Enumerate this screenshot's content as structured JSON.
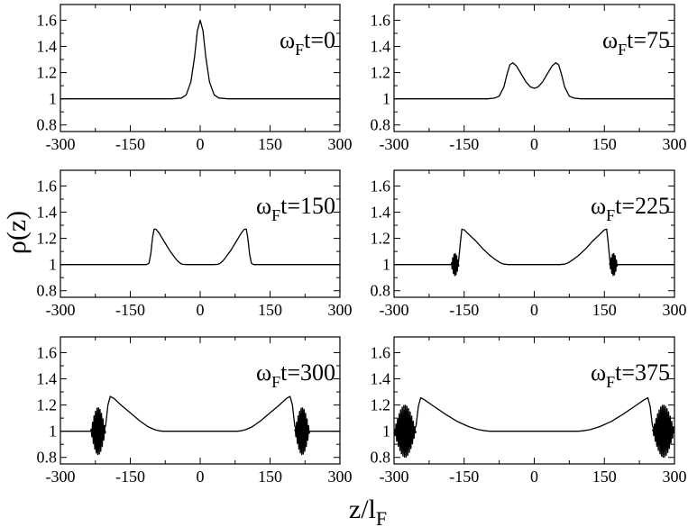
{
  "chart_data": {
    "type": "line",
    "ylabel": "ρ(z)",
    "xlabel_main": "z/l",
    "xlabel_sub": "F",
    "xlim": [
      -300,
      300
    ],
    "ylim": [
      0.75,
      1.72
    ],
    "xticks": [
      -300,
      -150,
      0,
      150,
      300
    ],
    "xtick_labels": [
      "-300",
      "-150",
      "0",
      "150",
      "300"
    ],
    "yticks": [
      0.8,
      1.0,
      1.2,
      1.4,
      1.6
    ],
    "ytick_labels": [
      "0.8",
      "1",
      "1.2",
      "1.4",
      "1.6"
    ],
    "panels": [
      {
        "label": {
          "omega": "ω",
          "sub": "F",
          "rest": "t=0"
        },
        "x": [
          -300,
          -60,
          -40,
          -30,
          -20,
          -12,
          -6,
          0,
          6,
          12,
          20,
          30,
          40,
          60,
          300
        ],
        "y": [
          1.0,
          1.0,
          1.006,
          1.03,
          1.13,
          1.32,
          1.52,
          1.6,
          1.52,
          1.32,
          1.13,
          1.03,
          1.006,
          1.0,
          1.0
        ],
        "oscillations": []
      },
      {
        "label": {
          "omega": "ω",
          "sub": "F",
          "rest": "t=75"
        },
        "x": [
          -300,
          -100,
          -85,
          -75,
          -65,
          -58,
          -52,
          -46,
          -38,
          -28,
          -18,
          -8,
          0,
          8,
          18,
          28,
          38,
          46,
          52,
          58,
          65,
          75,
          85,
          100,
          300
        ],
        "y": [
          1.0,
          1.0,
          1.005,
          1.02,
          1.09,
          1.19,
          1.26,
          1.275,
          1.25,
          1.19,
          1.13,
          1.09,
          1.08,
          1.09,
          1.13,
          1.19,
          1.25,
          1.275,
          1.26,
          1.19,
          1.09,
          1.02,
          1.005,
          1.0,
          1.0
        ],
        "oscillations": []
      },
      {
        "label": {
          "omega": "ω",
          "sub": "F",
          "rest": "t=150"
        },
        "x": [
          -300,
          -115,
          -110,
          -106,
          -102,
          -99,
          -95,
          -88,
          -78,
          -66,
          -56,
          -48,
          -42,
          -38,
          -30,
          30,
          38,
          42,
          48,
          56,
          66,
          78,
          88,
          95,
          99,
          102,
          106,
          110,
          115,
          300
        ],
        "y": [
          1.0,
          1.0,
          1.01,
          1.08,
          1.21,
          1.27,
          1.27,
          1.24,
          1.18,
          1.11,
          1.06,
          1.025,
          1.008,
          1.002,
          1.0,
          1.0,
          1.002,
          1.008,
          1.025,
          1.06,
          1.11,
          1.18,
          1.24,
          1.27,
          1.27,
          1.21,
          1.08,
          1.01,
          1.0,
          1.0
        ],
        "oscillations": []
      },
      {
        "label": {
          "omega": "ω",
          "sub": "F",
          "rest": "t=225"
        },
        "x": [
          -300,
          -170,
          -162,
          -158,
          -155,
          -150,
          -140,
          -125,
          -110,
          -95,
          -82,
          -72,
          -65,
          -55,
          55,
          65,
          72,
          82,
          95,
          110,
          125,
          140,
          150,
          155,
          158,
          162,
          170,
          300
        ],
        "y": [
          1.0,
          1.0,
          1.02,
          1.17,
          1.27,
          1.265,
          1.23,
          1.18,
          1.12,
          1.07,
          1.035,
          1.012,
          1.003,
          1.0,
          1.0,
          1.003,
          1.012,
          1.035,
          1.07,
          1.12,
          1.18,
          1.23,
          1.265,
          1.27,
          1.17,
          1.02,
          1.0,
          1.0
        ],
        "oscillations": [
          {
            "x_start": -178,
            "x_end": -161,
            "amplitude": 0.085,
            "cycles": 6
          },
          {
            "x_start": 161,
            "x_end": 178,
            "amplitude": 0.085,
            "cycles": 6
          }
        ]
      },
      {
        "label": {
          "omega": "ω",
          "sub": "F",
          "rest": "t=300"
        },
        "x": [
          -300,
          -208,
          -203,
          -198,
          -193,
          -185,
          -170,
          -150,
          -130,
          -112,
          -98,
          -88,
          -80,
          -70,
          70,
          80,
          88,
          98,
          112,
          130,
          150,
          170,
          185,
          193,
          198,
          203,
          208,
          300
        ],
        "y": [
          1.0,
          1.0,
          1.04,
          1.2,
          1.265,
          1.25,
          1.2,
          1.14,
          1.08,
          1.035,
          1.012,
          1.003,
          1.0,
          1.0,
          1.0,
          1.0,
          1.003,
          1.012,
          1.035,
          1.08,
          1.14,
          1.2,
          1.25,
          1.265,
          1.2,
          1.04,
          1.0,
          1.0
        ],
        "oscillations": [
          {
            "x_start": -235,
            "x_end": -203,
            "amplitude": 0.18,
            "cycles": 10
          },
          {
            "x_start": 203,
            "x_end": 235,
            "amplitude": 0.18,
            "cycles": 10
          }
        ]
      },
      {
        "label": {
          "omega": "ω",
          "sub": "F",
          "rest": "t=375"
        },
        "x": [
          -300,
          -258,
          -253,
          -248,
          -243,
          -235,
          -215,
          -190,
          -165,
          -140,
          -120,
          -105,
          -95,
          -85,
          85,
          95,
          105,
          120,
          140,
          165,
          190,
          215,
          235,
          243,
          248,
          253,
          258,
          300
        ],
        "y": [
          1.0,
          1.0,
          1.04,
          1.19,
          1.255,
          1.24,
          1.19,
          1.13,
          1.075,
          1.035,
          1.012,
          1.003,
          1.0,
          1.0,
          1.0,
          1.0,
          1.003,
          1.012,
          1.035,
          1.075,
          1.13,
          1.19,
          1.24,
          1.255,
          1.19,
          1.04,
          1.0,
          1.0
        ],
        "oscillations": [
          {
            "x_start": -300,
            "x_end": -253,
            "amplitude": 0.2,
            "cycles": 14
          },
          {
            "x_start": 253,
            "x_end": 300,
            "amplitude": 0.2,
            "cycles": 14
          }
        ]
      }
    ]
  }
}
